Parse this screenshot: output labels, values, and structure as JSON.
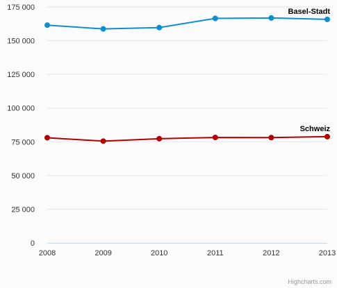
{
  "chart_data": {
    "type": "line",
    "categories": [
      "2008",
      "2009",
      "2010",
      "2011",
      "2012",
      "2013"
    ],
    "ylim": [
      0,
      175000
    ],
    "yticks": [
      0,
      25000,
      50000,
      75000,
      100000,
      125000,
      150000,
      175000
    ],
    "ytick_labels": [
      "0",
      "25 000",
      "50 000",
      "75 000",
      "100 000",
      "125 000",
      "150 000",
      "175 000"
    ],
    "grid": true,
    "series": [
      {
        "name": "Basel-Stadt",
        "color": "#0d8ecf",
        "values": [
          161500,
          158700,
          159700,
          166500,
          166800,
          165800
        ]
      },
      {
        "name": "Schweiz",
        "color": "#b30000",
        "values": [
          78000,
          75500,
          77300,
          78200,
          78100,
          78800
        ]
      }
    ],
    "credits": "Highcharts.com"
  }
}
